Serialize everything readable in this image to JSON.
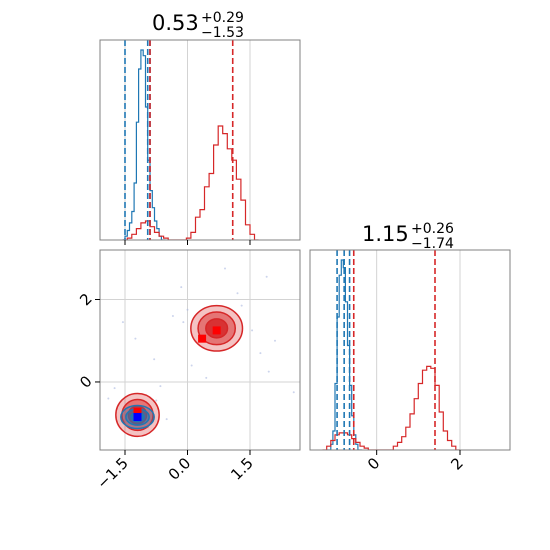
{
  "colors": {
    "series_a": "#1f77b4",
    "series_b": "#d62728",
    "grid": "#d3d3d3",
    "spine": "#808080",
    "marker_a": "#0000ff",
    "marker_b": "#ff0000"
  },
  "chart_data": {
    "type": "corner",
    "grid": true,
    "panels": {
      "param1_hist": {
        "title": {
          "median": "0.53",
          "plus": "+0.29",
          "minus": "−1.53"
        },
        "xlim": [
          -2.1,
          2.3
        ],
        "series": [
          {
            "color": "series_a",
            "quantile_lines": [
              -1.55,
              -1.05
            ],
            "median_line": -1.0,
            "bins": [
              [
                -1.6,
                0.0
              ],
              [
                -1.55,
                0.02
              ],
              [
                -1.5,
                0.05
              ],
              [
                -1.45,
                0.09
              ],
              [
                -1.4,
                0.15
              ],
              [
                -1.35,
                0.3
              ],
              [
                -1.3,
                0.62
              ],
              [
                -1.25,
                0.9
              ],
              [
                -1.2,
                1.0
              ],
              [
                -1.15,
                0.97
              ],
              [
                -1.1,
                0.7
              ],
              [
                -1.05,
                0.42
              ],
              [
                -1.0,
                0.26
              ],
              [
                -0.95,
                0.17
              ],
              [
                -0.9,
                0.1
              ],
              [
                -0.85,
                0.06
              ],
              [
                -0.8,
                0.02
              ],
              [
                -0.75,
                0.0
              ]
            ]
          },
          {
            "color": "series_b",
            "quantile_lines": [
              -1.0
            ],
            "median_line": 0.82,
            "bins": [
              [
                -1.6,
                0.0
              ],
              [
                -1.5,
                0.01
              ],
              [
                -1.4,
                0.03
              ],
              [
                -1.3,
                0.06
              ],
              [
                -1.2,
                0.09
              ],
              [
                -1.1,
                0.1
              ],
              [
                -1.0,
                0.07
              ],
              [
                -0.9,
                0.04
              ],
              [
                -0.8,
                0.02
              ],
              [
                -0.7,
                0.01
              ],
              [
                -0.6,
                0.0
              ],
              [
                -0.4,
                0.0
              ],
              [
                -0.2,
                0.01
              ],
              [
                -0.1,
                0.04
              ],
              [
                0.0,
                0.12
              ],
              [
                0.1,
                0.16
              ],
              [
                0.2,
                0.28
              ],
              [
                0.3,
                0.35
              ],
              [
                0.4,
                0.5
              ],
              [
                0.5,
                0.6
              ],
              [
                0.6,
                0.56
              ],
              [
                0.7,
                0.48
              ],
              [
                0.8,
                0.42
              ],
              [
                0.9,
                0.32
              ],
              [
                1.0,
                0.21
              ],
              [
                1.1,
                0.08
              ],
              [
                1.2,
                0.03
              ],
              [
                1.3,
                0.0
              ]
            ]
          }
        ]
      },
      "param2_hist": {
        "title": {
          "median": "1.15",
          "plus": "+0.26",
          "minus": "−1.74"
        },
        "xlim": [
          -1.6,
          3.2
        ],
        "ticks": [
          "0",
          "2"
        ],
        "tick_values": [
          0,
          2
        ],
        "series": [
          {
            "color": "series_a",
            "quantile_lines": [
              -0.95,
              -0.65
            ],
            "median_line": -0.78,
            "bins": [
              [
                -1.2,
                0.0
              ],
              [
                -1.1,
                0.03
              ],
              [
                -1.05,
                0.1
              ],
              [
                -1.0,
                0.35
              ],
              [
                -0.95,
                0.7
              ],
              [
                -0.9,
                0.92
              ],
              [
                -0.85,
                1.0
              ],
              [
                -0.8,
                0.96
              ],
              [
                -0.75,
                0.78
              ],
              [
                -0.7,
                0.55
              ],
              [
                -0.65,
                0.34
              ],
              [
                -0.6,
                0.18
              ],
              [
                -0.55,
                0.08
              ],
              [
                -0.5,
                0.03
              ],
              [
                -0.45,
                0.0
              ]
            ]
          },
          {
            "color": "series_b",
            "quantile_lines": [
              -0.55
            ],
            "median_line": 1.4,
            "bins": [
              [
                -1.3,
                0.0
              ],
              [
                -1.2,
                0.02
              ],
              [
                -1.1,
                0.05
              ],
              [
                -1.0,
                0.08
              ],
              [
                -0.9,
                0.09
              ],
              [
                -0.8,
                0.09
              ],
              [
                -0.7,
                0.08
              ],
              [
                -0.6,
                0.06
              ],
              [
                -0.5,
                0.04
              ],
              [
                -0.4,
                0.02
              ],
              [
                -0.3,
                0.01
              ],
              [
                -0.2,
                0.0
              ],
              [
                0.4,
                0.02
              ],
              [
                0.5,
                0.04
              ],
              [
                0.6,
                0.07
              ],
              [
                0.7,
                0.12
              ],
              [
                0.8,
                0.19
              ],
              [
                0.9,
                0.27
              ],
              [
                1.0,
                0.35
              ],
              [
                1.1,
                0.42
              ],
              [
                1.2,
                0.44
              ],
              [
                1.3,
                0.43
              ],
              [
                1.4,
                0.34
              ],
              [
                1.5,
                0.2
              ],
              [
                1.6,
                0.1
              ],
              [
                1.7,
                0.05
              ],
              [
                1.8,
                0.02
              ],
              [
                1.9,
                0.0
              ]
            ]
          }
        ]
      },
      "joint": {
        "xlim": [
          -2.1,
          2.7
        ],
        "ylim": [
          -1.65,
          3.2
        ],
        "xticks": [
          "−1.5",
          "0.0",
          "1.5"
        ],
        "xtick_values": [
          -1.5,
          0.0,
          1.5
        ],
        "yticks": [
          "0",
          "2"
        ],
        "ytick_values": [
          0,
          2
        ],
        "blobs": [
          {
            "color": "series_b",
            "cx": 0.7,
            "cy": 1.3,
            "rx": 0.62,
            "ry": 0.55,
            "levels": [
              1.0,
              0.72,
              0.42
            ]
          },
          {
            "color": "series_b",
            "cx": -1.2,
            "cy": -0.8,
            "rx": 0.52,
            "ry": 0.52,
            "levels": [
              1.0,
              0.72,
              0.42
            ]
          },
          {
            "color": "series_a",
            "cx": -1.2,
            "cy": -0.85,
            "rx": 0.4,
            "ry": 0.28,
            "levels": [
              1.0,
              0.7,
              0.4
            ]
          }
        ],
        "markers": [
          {
            "color": "marker_b",
            "x": 0.35,
            "y": 1.05
          },
          {
            "color": "marker_b",
            "x": 0.7,
            "y": 1.25
          },
          {
            "color": "marker_b",
            "x": -1.2,
            "y": -0.72
          },
          {
            "color": "marker_a",
            "x": -1.2,
            "y": -0.85
          }
        ],
        "scatter_points": [
          [
            -0.35,
            1.6
          ],
          [
            -0.1,
            1.45
          ],
          [
            0.0,
            1.75
          ],
          [
            1.2,
            2.15
          ],
          [
            1.3,
            1.85
          ],
          [
            1.55,
            1.25
          ],
          [
            1.95,
            0.25
          ],
          [
            1.75,
            0.7
          ],
          [
            2.55,
            -0.25
          ],
          [
            1.9,
            2.55
          ],
          [
            -1.9,
            -0.4
          ],
          [
            -1.75,
            -0.15
          ],
          [
            -0.75,
            -0.45
          ],
          [
            -0.65,
            -0.1
          ],
          [
            -0.95,
            -1.1
          ],
          [
            -1.55,
            1.45
          ],
          [
            -0.8,
            0.55
          ],
          [
            0.1,
            0.4
          ],
          [
            0.9,
            2.75
          ],
          [
            0.45,
            0.1
          ],
          [
            2.1,
            1.0
          ],
          [
            -0.15,
            2.3
          ],
          [
            -1.25,
            1.05
          ],
          [
            -0.5,
            -0.9
          ]
        ]
      }
    }
  }
}
